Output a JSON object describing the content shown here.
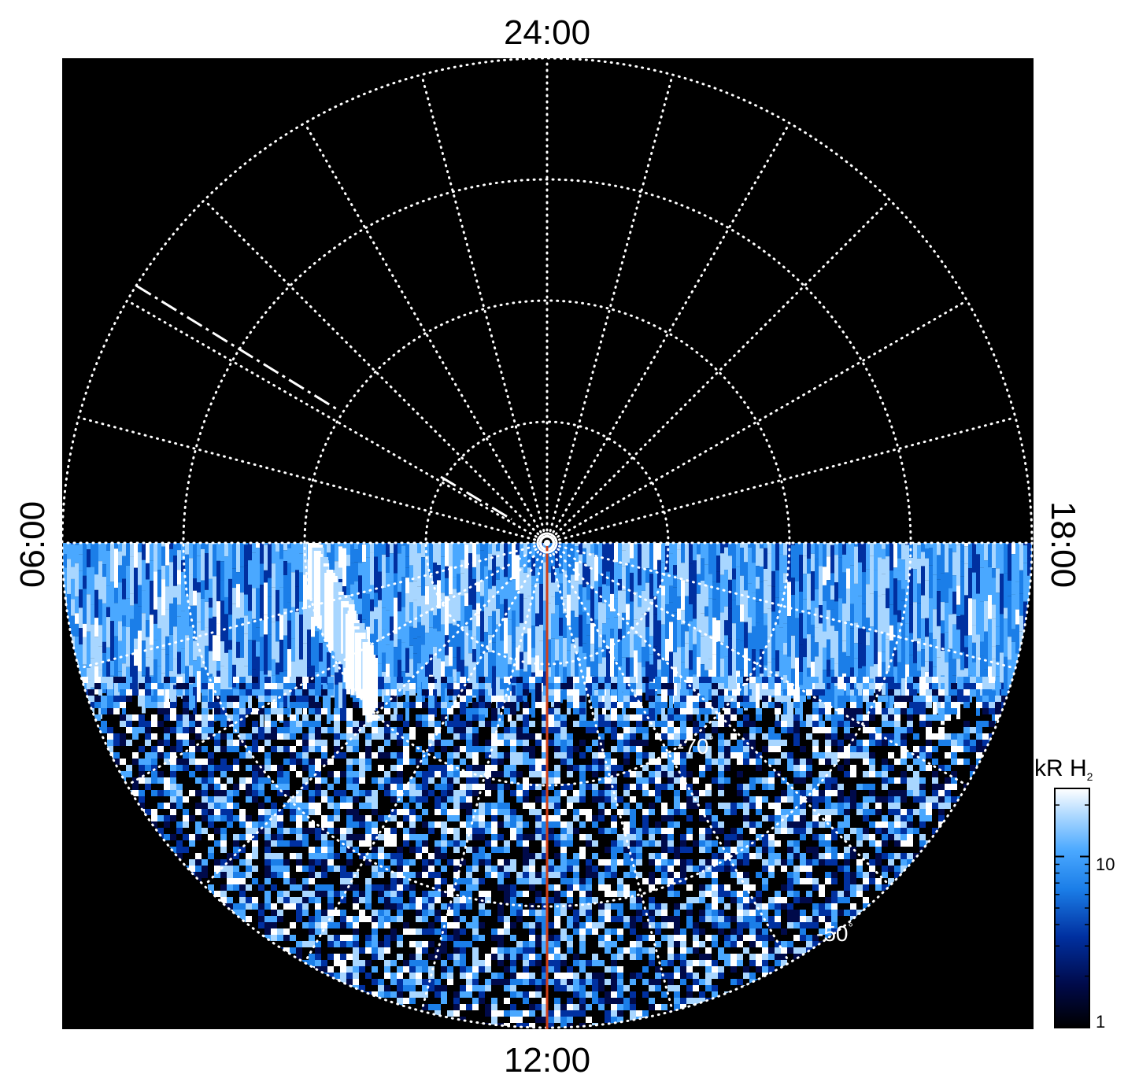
{
  "chart_data": {
    "type": "heatmap",
    "projection": "polar-stereographic",
    "local_time_labels": {
      "top": "24:00",
      "bottom": "12:00",
      "left": "06:00",
      "right": "18:00"
    },
    "latitude_labels": [
      {
        "text": "-70",
        "latitude": -70
      },
      {
        "text": "-50",
        "latitude": -50
      }
    ],
    "degree_symbol": "°",
    "latitude_circles": [
      -50,
      -60,
      -70,
      -80,
      -90
    ],
    "meridian_spacing_hours": 1,
    "colorbar": {
      "title": "kR H",
      "title_subscript": "2",
      "scale": "log",
      "range": [
        1,
        25
      ],
      "tick_labels": [
        "10",
        "1"
      ],
      "tick_values": [
        10,
        1
      ],
      "colors": [
        "#000000",
        "#000a4a",
        "#0030a0",
        "#1b7ee8",
        "#4aa8ff",
        "#a8d6ff",
        "#ffffff"
      ]
    },
    "background_color": "#000000",
    "grid_color": "#ffffff",
    "highlight_meridian_color": "#d0401a",
    "observed_region": "dayside half (06:00 through 12:00 to 18:00)"
  }
}
